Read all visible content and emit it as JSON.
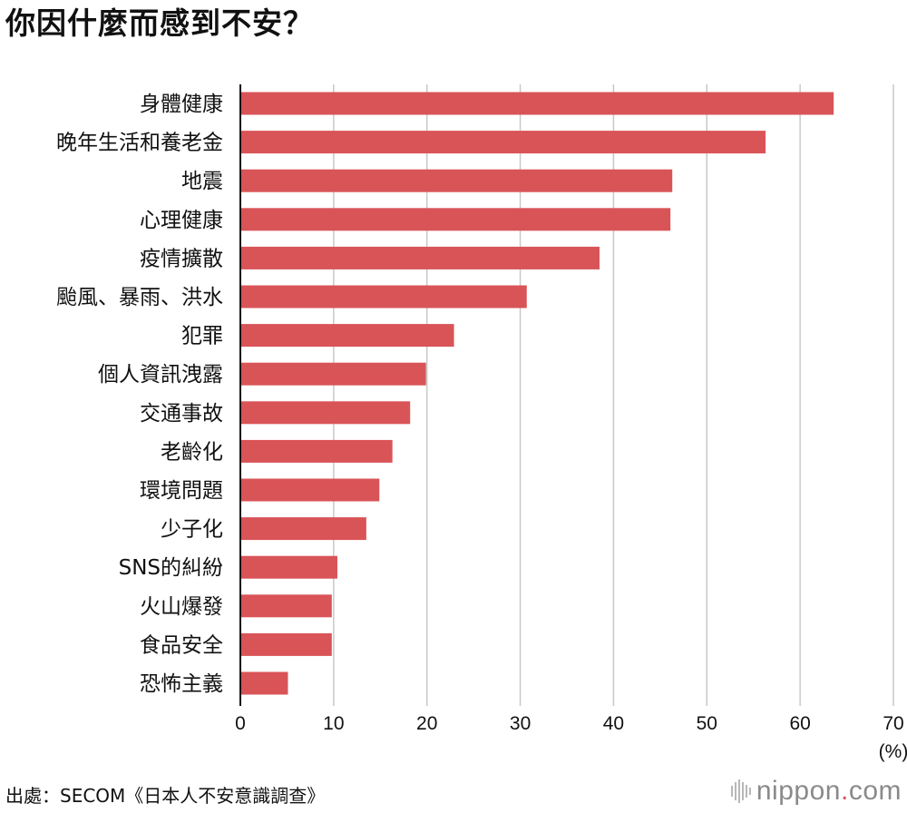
{
  "title": "你因什麼而感到不安？",
  "source": "出處：SECOM《日本人不安意識調查》",
  "logo": {
    "name": "nippon",
    "dot": ".",
    "suffix": "com",
    "icon": "sound-bars-icon"
  },
  "colors": {
    "bar": "#d95457",
    "grid": "#c8c8c8",
    "axis": "#111111",
    "logo_dot": "#d95457"
  },
  "chart_data": {
    "type": "bar",
    "orientation": "horizontal",
    "categories": [
      "身體健康",
      "晚年生活和養老金",
      "地震",
      "心理健康",
      "疫情擴散",
      "颱風、暴雨、洪水",
      "犯罪",
      "個人資訊洩露",
      "交通事故",
      "老齡化",
      "環境問題",
      "少子化",
      "SNS的糾紛",
      "火山爆發",
      "食品安全",
      "恐怖主義"
    ],
    "values": [
      63.6,
      56.3,
      46.3,
      46.1,
      38.5,
      30.7,
      22.9,
      19.9,
      18.2,
      16.3,
      14.9,
      13.5,
      10.4,
      9.8,
      9.8,
      5.1
    ],
    "ticks": [
      0,
      10,
      20,
      30,
      40,
      50,
      60,
      70
    ],
    "xlim": [
      0,
      70
    ],
    "unit_label": "(%)",
    "grid": true
  }
}
